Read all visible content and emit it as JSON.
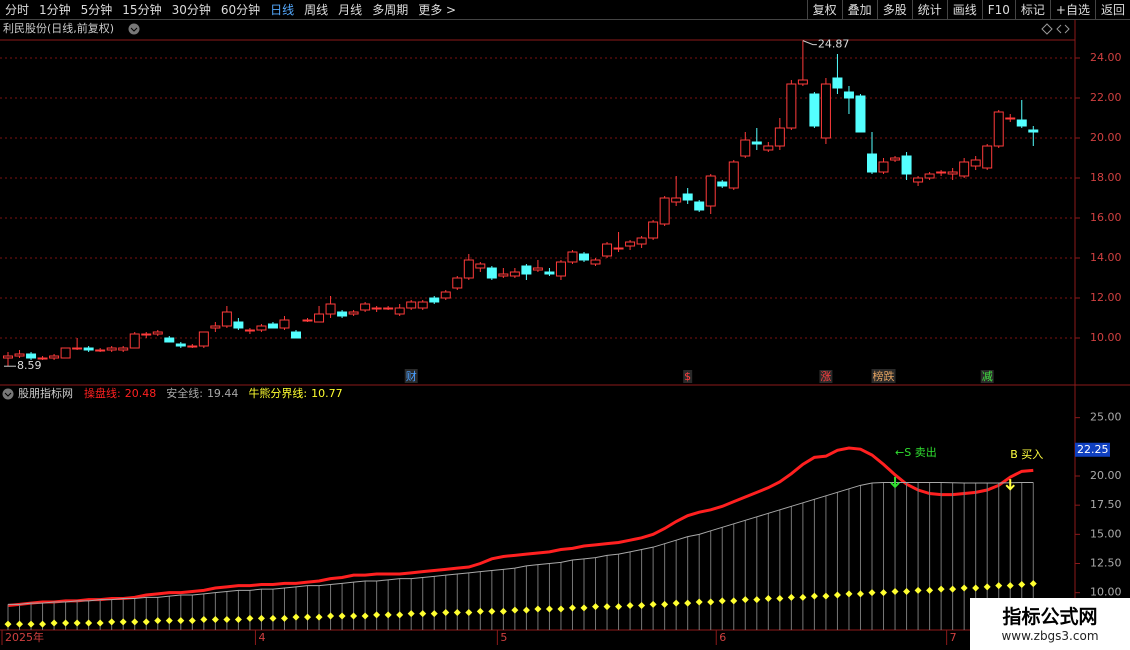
{
  "toolbar": {
    "left": [
      "分时",
      "1分钟",
      "5分钟",
      "15分钟",
      "30分钟",
      "60分钟",
      "日线",
      "周线",
      "月线",
      "多周期",
      "更多 >"
    ],
    "active": 6,
    "right": [
      "复权",
      "叠加",
      "多股",
      "统计",
      "画线",
      "F10",
      "标记",
      "+自选",
      "返回"
    ]
  },
  "chart_data": [
    {
      "type": "candlestick",
      "title": "利民股份(日线,前复权)",
      "up_color": "#ff3b3b",
      "down_color": "#54ffff",
      "high_label": 24.87,
      "low_label": 8.59,
      "ylim": [
        7.65,
        24.9
      ],
      "yticks": [
        {
          "value": 10,
          "label": "10.00"
        },
        {
          "value": 12,
          "label": "12.00"
        },
        {
          "value": 14,
          "label": "14.00"
        },
        {
          "value": 16,
          "label": "16.00"
        },
        {
          "value": 18,
          "label": "18.00"
        },
        {
          "value": 20,
          "label": "20.00"
        },
        {
          "value": 22,
          "label": "22.00"
        },
        {
          "value": 24,
          "label": "24.00"
        }
      ],
      "categories": [
        "2025年",
        null,
        null,
        null,
        null,
        null,
        null,
        null,
        null,
        null,
        null,
        null,
        null,
        null,
        null,
        null,
        null,
        null,
        null,
        null,
        null,
        null,
        "4",
        null,
        null,
        null,
        null,
        null,
        null,
        null,
        null,
        null,
        null,
        null,
        null,
        null,
        null,
        null,
        null,
        null,
        null,
        null,
        null,
        "5",
        null,
        null,
        null,
        null,
        null,
        null,
        null,
        null,
        null,
        null,
        null,
        null,
        null,
        null,
        null,
        null,
        null,
        null,
        "6",
        null,
        null,
        null,
        null,
        null,
        null,
        null,
        null,
        null,
        null,
        null,
        null,
        null,
        null,
        null,
        null,
        null,
        null,
        null,
        "7",
        null,
        null,
        null,
        null,
        null,
        null,
        null
      ],
      "events": [
        {
          "text": "财",
          "index": 35,
          "color": "#4aa0ff"
        },
        {
          "text": "$",
          "index": 59,
          "color": "#ff4040"
        },
        {
          "text": "涨",
          "index": 71,
          "color": "#ff4040"
        },
        {
          "text": "榜跌",
          "index": 76,
          "color": "#e0a060"
        },
        {
          "text": "减",
          "index": 85,
          "color": "#40e040"
        }
      ],
      "candles": [
        {
          "open": 9.0,
          "close": 9.1,
          "high": 9.3,
          "low": 8.59
        },
        {
          "open": 9.1,
          "close": 9.2,
          "high": 9.4,
          "low": 9.0
        },
        {
          "open": 9.2,
          "close": 9.0,
          "high": 9.3,
          "low": 8.9
        },
        {
          "open": 9.0,
          "close": 9.0,
          "high": 9.1,
          "low": 8.9
        },
        {
          "open": 9.0,
          "close": 9.1,
          "high": 9.2,
          "low": 8.9
        },
        {
          "open": 9.0,
          "close": 9.5,
          "high": 9.5,
          "low": 9.0
        },
        {
          "open": 9.5,
          "close": 9.5,
          "high": 10.0,
          "low": 9.4
        },
        {
          "open": 9.5,
          "close": 9.4,
          "high": 9.6,
          "low": 9.3
        },
        {
          "open": 9.4,
          "close": 9.4,
          "high": 9.5,
          "low": 9.3
        },
        {
          "open": 9.4,
          "close": 9.5,
          "high": 9.6,
          "low": 9.3
        },
        {
          "open": 9.4,
          "close": 9.5,
          "high": 9.6,
          "low": 9.3
        },
        {
          "open": 9.5,
          "close": 10.2,
          "high": 10.3,
          "low": 9.5
        },
        {
          "open": 10.2,
          "close": 10.2,
          "high": 10.3,
          "low": 10.0
        },
        {
          "open": 10.2,
          "close": 10.3,
          "high": 10.4,
          "low": 10.1
        },
        {
          "open": 10.0,
          "close": 9.8,
          "high": 10.1,
          "low": 9.8
        },
        {
          "open": 9.7,
          "close": 9.6,
          "high": 9.8,
          "low": 9.5
        },
        {
          "open": 9.6,
          "close": 9.6,
          "high": 9.7,
          "low": 9.5
        },
        {
          "open": 9.6,
          "close": 10.3,
          "high": 10.3,
          "low": 9.5
        },
        {
          "open": 10.5,
          "close": 10.6,
          "high": 10.8,
          "low": 10.3
        },
        {
          "open": 10.6,
          "close": 11.3,
          "high": 11.6,
          "low": 10.5
        },
        {
          "open": 10.8,
          "close": 10.5,
          "high": 11.0,
          "low": 10.4
        },
        {
          "open": 10.4,
          "close": 10.4,
          "high": 10.5,
          "low": 10.2
        },
        {
          "open": 10.4,
          "close": 10.6,
          "high": 10.7,
          "low": 10.3
        },
        {
          "open": 10.7,
          "close": 10.5,
          "high": 10.8,
          "low": 10.5
        },
        {
          "open": 10.5,
          "close": 10.9,
          "high": 11.1,
          "low": 10.4
        },
        {
          "open": 10.3,
          "close": 10.0,
          "high": 10.4,
          "low": 10.0
        },
        {
          "open": 10.9,
          "close": 10.9,
          "high": 11.0,
          "low": 10.8
        },
        {
          "open": 10.8,
          "close": 11.2,
          "high": 11.6,
          "low": 10.8
        },
        {
          "open": 11.2,
          "close": 11.7,
          "high": 12.1,
          "low": 11.0
        },
        {
          "open": 11.3,
          "close": 11.1,
          "high": 11.4,
          "low": 11.0
        },
        {
          "open": 11.2,
          "close": 11.3,
          "high": 11.4,
          "low": 11.1
        },
        {
          "open": 11.4,
          "close": 11.7,
          "high": 11.8,
          "low": 11.3
        },
        {
          "open": 11.5,
          "close": 11.5,
          "high": 11.6,
          "low": 11.3
        },
        {
          "open": 11.5,
          "close": 11.5,
          "high": 11.6,
          "low": 11.4
        },
        {
          "open": 11.2,
          "close": 11.5,
          "high": 11.7,
          "low": 11.1
        },
        {
          "open": 11.5,
          "close": 11.8,
          "high": 11.9,
          "low": 11.4
        },
        {
          "open": 11.5,
          "close": 11.8,
          "high": 11.9,
          "low": 11.4
        },
        {
          "open": 12.0,
          "close": 11.8,
          "high": 12.1,
          "low": 11.7
        },
        {
          "open": 12.0,
          "close": 12.3,
          "high": 12.4,
          "low": 11.9
        },
        {
          "open": 12.5,
          "close": 13.0,
          "high": 13.1,
          "low": 12.4
        },
        {
          "open": 13.0,
          "close": 13.9,
          "high": 14.2,
          "low": 12.9
        },
        {
          "open": 13.5,
          "close": 13.7,
          "high": 13.8,
          "low": 13.3
        },
        {
          "open": 13.5,
          "close": 13.0,
          "high": 13.6,
          "low": 12.9
        },
        {
          "open": 13.1,
          "close": 13.2,
          "high": 13.5,
          "low": 13.0
        },
        {
          "open": 13.1,
          "close": 13.3,
          "high": 13.5,
          "low": 13.0
        },
        {
          "open": 13.6,
          "close": 13.2,
          "high": 13.7,
          "low": 12.9
        },
        {
          "open": 13.4,
          "close": 13.5,
          "high": 13.9,
          "low": 13.3
        },
        {
          "open": 13.3,
          "close": 13.2,
          "high": 13.5,
          "low": 13.1
        },
        {
          "open": 13.1,
          "close": 13.8,
          "high": 13.9,
          "low": 12.9
        },
        {
          "open": 13.8,
          "close": 14.3,
          "high": 14.4,
          "low": 13.7
        },
        {
          "open": 14.2,
          "close": 13.9,
          "high": 14.3,
          "low": 13.8
        },
        {
          "open": 13.7,
          "close": 13.9,
          "high": 14.0,
          "low": 13.6
        },
        {
          "open": 14.1,
          "close": 14.7,
          "high": 14.8,
          "low": 14.0
        },
        {
          "open": 14.5,
          "close": 14.5,
          "high": 15.3,
          "low": 14.3
        },
        {
          "open": 14.6,
          "close": 14.8,
          "high": 14.9,
          "low": 14.4
        },
        {
          "open": 14.7,
          "close": 15.0,
          "high": 15.1,
          "low": 14.5
        },
        {
          "open": 15.0,
          "close": 15.8,
          "high": 15.9,
          "low": 14.9
        },
        {
          "open": 15.7,
          "close": 17.0,
          "high": 17.1,
          "low": 15.6
        },
        {
          "open": 16.8,
          "close": 17.0,
          "high": 18.1,
          "low": 16.6
        },
        {
          "open": 17.2,
          "close": 16.9,
          "high": 17.5,
          "low": 16.7
        },
        {
          "open": 16.8,
          "close": 16.4,
          "high": 16.9,
          "low": 16.3
        },
        {
          "open": 16.6,
          "close": 18.1,
          "high": 18.2,
          "low": 16.2
        },
        {
          "open": 17.8,
          "close": 17.6,
          "high": 17.9,
          "low": 17.5
        },
        {
          "open": 17.5,
          "close": 18.8,
          "high": 18.9,
          "low": 17.4
        },
        {
          "open": 19.1,
          "close": 19.9,
          "high": 20.3,
          "low": 19.0
        },
        {
          "open": 19.8,
          "close": 19.7,
          "high": 20.5,
          "low": 19.4
        },
        {
          "open": 19.4,
          "close": 19.6,
          "high": 19.8,
          "low": 19.3
        },
        {
          "open": 19.6,
          "close": 20.5,
          "high": 21.0,
          "low": 19.4
        },
        {
          "open": 20.5,
          "close": 22.7,
          "high": 22.9,
          "low": 20.4
        },
        {
          "open": 22.7,
          "close": 22.9,
          "high": 24.87,
          "low": 22.6
        },
        {
          "open": 22.2,
          "close": 20.6,
          "high": 22.3,
          "low": 20.5
        },
        {
          "open": 20.0,
          "close": 22.7,
          "high": 23.0,
          "low": 19.7
        },
        {
          "open": 23.0,
          "close": 22.5,
          "high": 24.2,
          "low": 22.2
        },
        {
          "open": 22.3,
          "close": 22.0,
          "high": 22.6,
          "low": 21.2
        },
        {
          "open": 22.1,
          "close": 20.3,
          "high": 22.2,
          "low": 20.3
        },
        {
          "open": 19.2,
          "close": 18.3,
          "high": 20.3,
          "low": 18.2
        },
        {
          "open": 18.3,
          "close": 18.8,
          "high": 19.0,
          "low": 18.2
        },
        {
          "open": 18.9,
          "close": 19.0,
          "high": 19.1,
          "low": 18.8
        },
        {
          "open": 19.1,
          "close": 18.2,
          "high": 19.3,
          "low": 17.9
        },
        {
          "open": 17.8,
          "close": 18.0,
          "high": 18.1,
          "low": 17.6
        },
        {
          "open": 18.0,
          "close": 18.2,
          "high": 18.3,
          "low": 17.9
        },
        {
          "open": 18.3,
          "close": 18.3,
          "high": 18.4,
          "low": 18.1
        },
        {
          "open": 18.2,
          "close": 18.3,
          "high": 18.5,
          "low": 17.9
        },
        {
          "open": 18.1,
          "close": 18.8,
          "high": 19.0,
          "low": 18.0
        },
        {
          "open": 18.6,
          "close": 18.9,
          "high": 19.1,
          "low": 18.4
        },
        {
          "open": 18.5,
          "close": 19.6,
          "high": 19.7,
          "low": 18.4
        },
        {
          "open": 19.6,
          "close": 21.3,
          "high": 21.4,
          "low": 19.5
        },
        {
          "open": 21.0,
          "close": 21.0,
          "high": 21.2,
          "low": 20.8
        },
        {
          "open": 20.9,
          "close": 20.6,
          "high": 21.9,
          "low": 20.5
        },
        {
          "open": 20.4,
          "close": 20.3,
          "high": 20.6,
          "low": 19.6
        }
      ]
    },
    {
      "type": "line",
      "title": "股朋指标网",
      "ylim": [
        6.8,
        27.8
      ],
      "yticks": [
        {
          "value": 10,
          "label": "10.00"
        },
        {
          "value": 12.5,
          "label": "12.50"
        },
        {
          "value": 15,
          "label": "15.00"
        },
        {
          "value": 17.5,
          "label": "17.50"
        },
        {
          "value": 20,
          "label": "20.00"
        },
        {
          "value": 25,
          "label": "25.00"
        }
      ],
      "current_label": {
        "value": 22.25,
        "label": "22.25"
      },
      "signals": [
        {
          "text": "←S 卖出",
          "index": 77,
          "color": "#30e030"
        },
        {
          "text": "B 买入",
          "index": 87,
          "color": "#ffff40"
        }
      ],
      "series": [
        {
          "name": "操盘线:",
          "color": "#ff2020",
          "style": "thick",
          "values": [
            8.9,
            9.0,
            9.1,
            9.2,
            9.2,
            9.3,
            9.3,
            9.4,
            9.4,
            9.5,
            9.5,
            9.6,
            9.8,
            9.9,
            10.0,
            10.0,
            10.1,
            10.2,
            10.4,
            10.5,
            10.6,
            10.6,
            10.7,
            10.7,
            10.8,
            10.8,
            10.9,
            11.0,
            11.2,
            11.3,
            11.5,
            11.5,
            11.6,
            11.6,
            11.6,
            11.7,
            11.8,
            11.9,
            12.0,
            12.1,
            12.2,
            12.5,
            12.9,
            13.1,
            13.2,
            13.3,
            13.4,
            13.5,
            13.7,
            13.8,
            14.0,
            14.1,
            14.2,
            14.3,
            14.5,
            14.7,
            15.0,
            15.5,
            16.1,
            16.6,
            16.9,
            17.1,
            17.4,
            17.8,
            18.2,
            18.6,
            19.0,
            19.5,
            20.2,
            21.0,
            21.6,
            21.7,
            22.2,
            22.4,
            22.3,
            21.8,
            21.0,
            20.1,
            19.3,
            18.8,
            18.5,
            18.4,
            18.4,
            18.5,
            18.6,
            18.8,
            19.2,
            19.9,
            20.4,
            20.48
          ]
        },
        {
          "name": "安全线:",
          "color": "#a8a8a8",
          "style": "bars",
          "values": [
            9.0,
            9.0,
            9.1,
            9.1,
            9.2,
            9.2,
            9.3,
            9.3,
            9.4,
            9.4,
            9.5,
            9.5,
            9.6,
            9.6,
            9.7,
            9.8,
            9.8,
            9.9,
            10.0,
            10.1,
            10.2,
            10.2,
            10.3,
            10.3,
            10.4,
            10.5,
            10.6,
            10.6,
            10.7,
            10.8,
            10.9,
            11.0,
            11.0,
            11.1,
            11.2,
            11.2,
            11.3,
            11.4,
            11.5,
            11.6,
            11.7,
            11.8,
            11.9,
            12.0,
            12.1,
            12.3,
            12.4,
            12.5,
            12.6,
            12.8,
            12.9,
            13.0,
            13.2,
            13.3,
            13.5,
            13.7,
            13.9,
            14.2,
            14.5,
            14.8,
            15.0,
            15.3,
            15.6,
            15.9,
            16.2,
            16.5,
            16.8,
            17.1,
            17.4,
            17.7,
            18.0,
            18.3,
            18.6,
            18.9,
            19.2,
            19.4,
            19.44,
            19.44,
            19.44,
            19.44,
            19.44,
            19.44,
            19.42,
            19.4,
            19.4,
            19.4,
            19.4,
            19.42,
            19.44,
            19.44
          ]
        },
        {
          "name": "牛熊分界线:",
          "color": "#ffff30",
          "style": "dots",
          "values": [
            7.3,
            7.3,
            7.3,
            7.3,
            7.4,
            7.4,
            7.4,
            7.4,
            7.4,
            7.5,
            7.5,
            7.5,
            7.5,
            7.6,
            7.6,
            7.6,
            7.6,
            7.7,
            7.7,
            7.7,
            7.7,
            7.8,
            7.8,
            7.8,
            7.8,
            7.9,
            7.9,
            7.9,
            8.0,
            8.0,
            8.0,
            8.0,
            8.1,
            8.1,
            8.1,
            8.2,
            8.2,
            8.2,
            8.3,
            8.3,
            8.3,
            8.4,
            8.4,
            8.4,
            8.5,
            8.5,
            8.6,
            8.6,
            8.6,
            8.7,
            8.7,
            8.8,
            8.8,
            8.8,
            8.9,
            8.9,
            9.0,
            9.0,
            9.1,
            9.1,
            9.2,
            9.2,
            9.3,
            9.3,
            9.4,
            9.4,
            9.5,
            9.5,
            9.6,
            9.6,
            9.7,
            9.7,
            9.8,
            9.9,
            9.9,
            10.0,
            10.0,
            10.1,
            10.1,
            10.2,
            10.2,
            10.3,
            10.3,
            10.4,
            10.4,
            10.5,
            10.6,
            10.6,
            10.7,
            10.77
          ]
        }
      ]
    }
  ],
  "watermark": {
    "title": "指标公式网",
    "url": "www.zbgs3.com"
  }
}
